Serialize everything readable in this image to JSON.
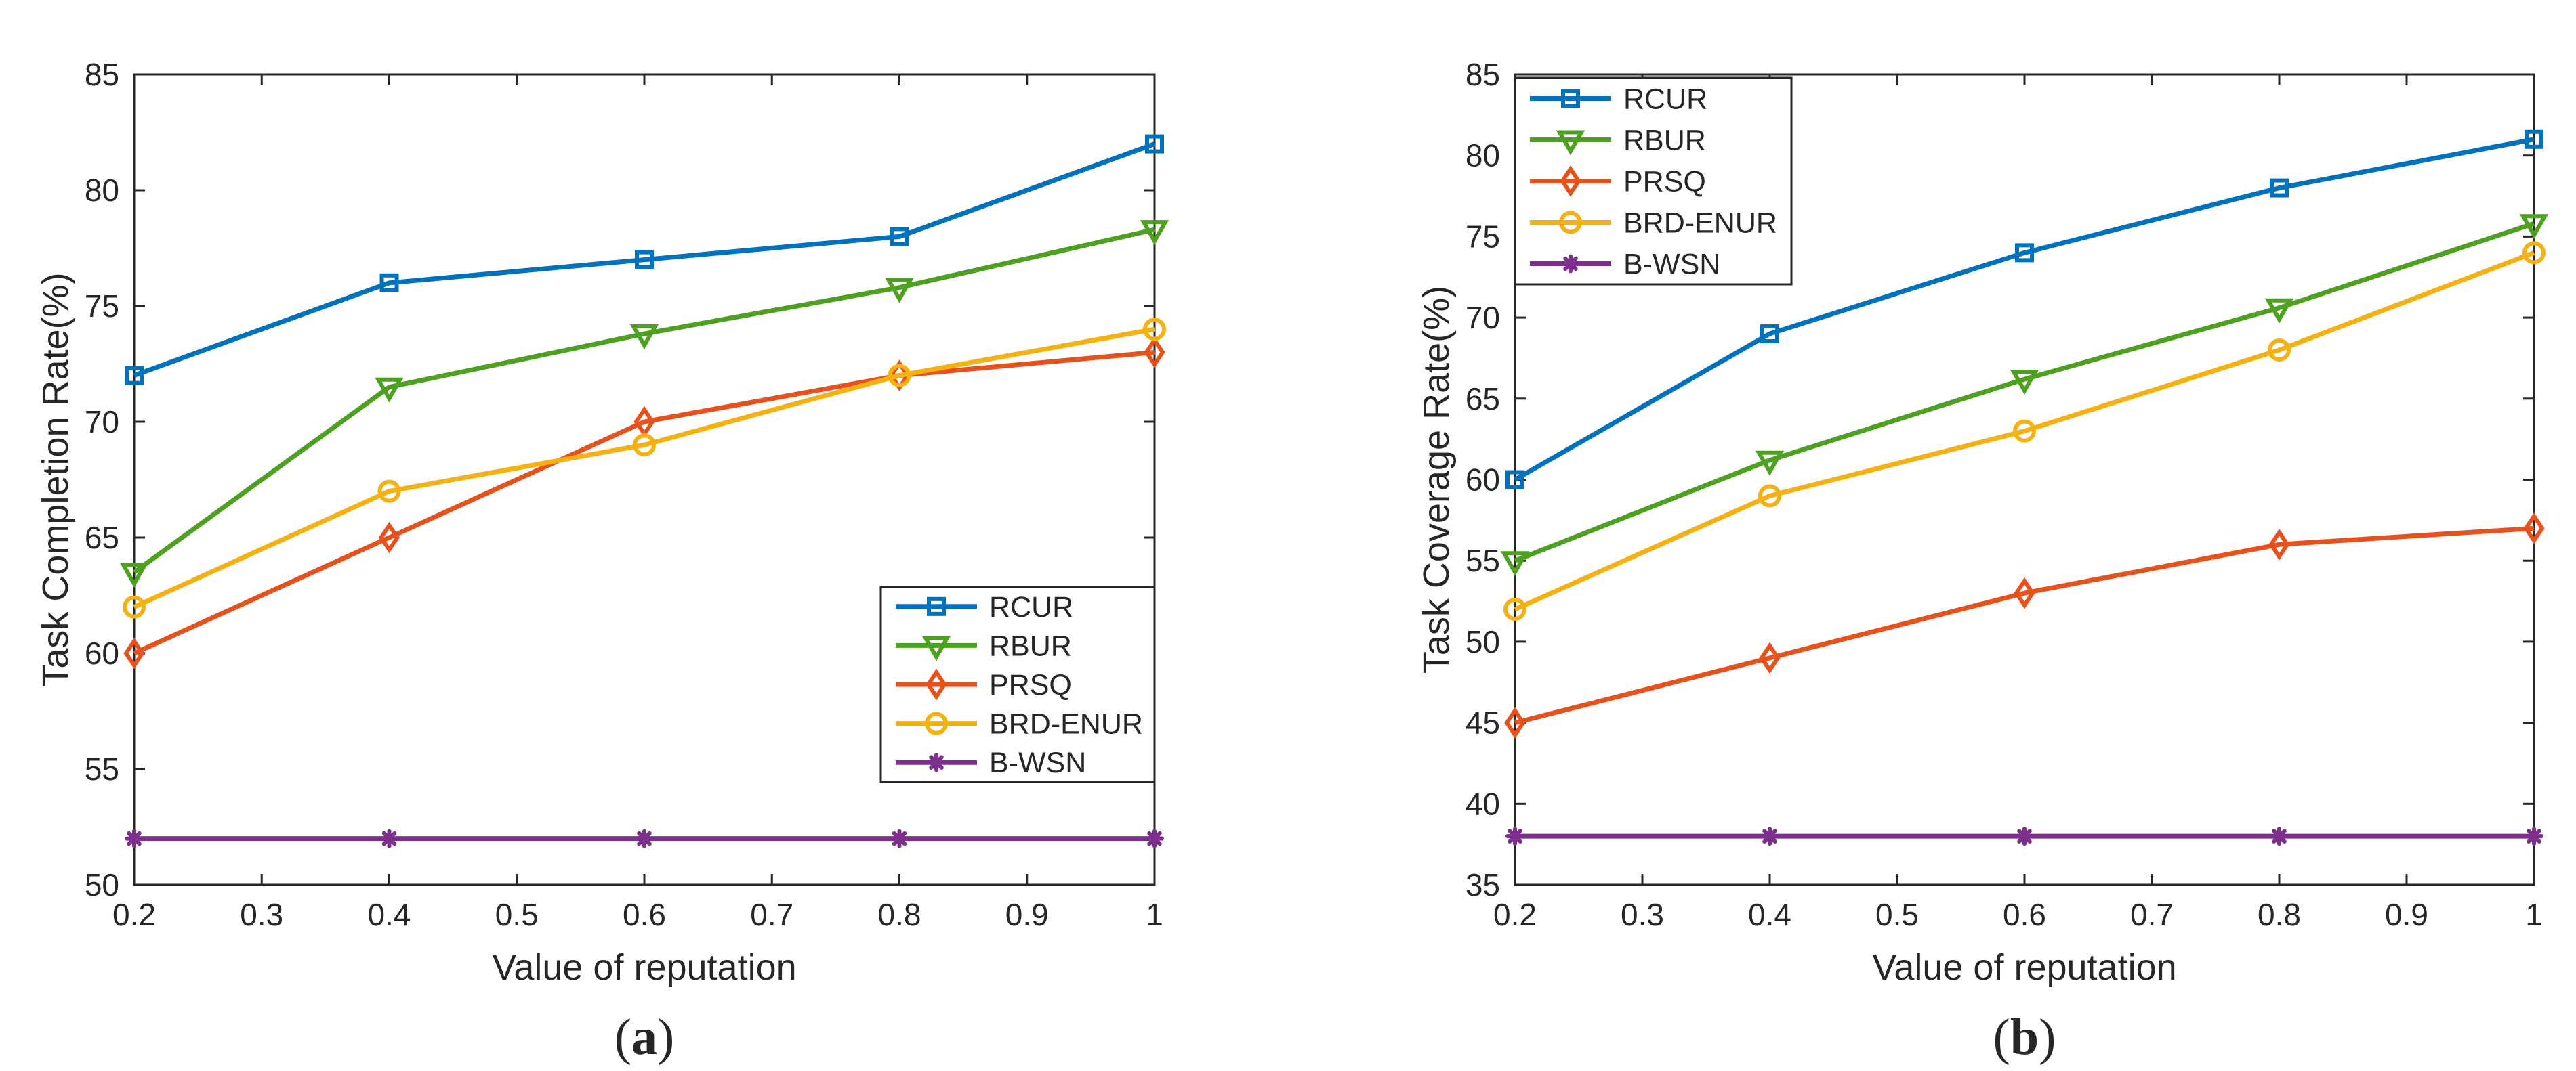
{
  "chart_data": [
    {
      "type": "line",
      "panel_label": "a",
      "title": "",
      "xlabel": "Value of reputation",
      "ylabel": "Task Completion Rate(%)",
      "xlim": [
        0.2,
        1
      ],
      "ylim": [
        50,
        85
      ],
      "xticks": [
        0.2,
        0.3,
        0.4,
        0.5,
        0.6,
        0.7,
        0.8,
        0.9,
        1
      ],
      "xtick_labels": [
        "0.2",
        "0.3",
        "0.4",
        "0.5",
        "0.6",
        "0.7",
        "0.8",
        "0.9",
        "1"
      ],
      "yticks": [
        50,
        55,
        60,
        65,
        70,
        75,
        80,
        85
      ],
      "ytick_labels": [
        "50",
        "55",
        "60",
        "65",
        "70",
        "75",
        "80",
        "85"
      ],
      "legend_position": "bottom-right",
      "x": [
        0.2,
        0.4,
        0.6,
        0.8,
        1
      ],
      "series": [
        {
          "name": "RCUR",
          "color": "#0072BD",
          "marker": "square",
          "values": [
            72,
            76,
            77,
            78,
            82
          ]
        },
        {
          "name": "RBUR",
          "color": "#4DA020",
          "marker": "triangle-down",
          "values": [
            63.5,
            71.5,
            73.8,
            75.8,
            78.3
          ]
        },
        {
          "name": "PRSQ",
          "color": "#E8501C",
          "marker": "diamond",
          "values": [
            60,
            65,
            70,
            72,
            73
          ]
        },
        {
          "name": "BRD-ENUR",
          "color": "#F5B012",
          "marker": "circle",
          "values": [
            62,
            67,
            69,
            72,
            74
          ]
        },
        {
          "name": "B-WSN",
          "color": "#7E2F8E",
          "marker": "asterisk",
          "values": [
            52,
            52,
            52,
            52,
            52
          ]
        }
      ]
    },
    {
      "type": "line",
      "panel_label": "b",
      "title": "",
      "xlabel": "Value of reputation",
      "ylabel": "Task Coverage Rate(%)",
      "xlim": [
        0.2,
        1
      ],
      "ylim": [
        35,
        85
      ],
      "xticks": [
        0.2,
        0.3,
        0.4,
        0.5,
        0.6,
        0.7,
        0.8,
        0.9,
        1
      ],
      "xtick_labels": [
        "0.2",
        "0.3",
        "0.4",
        "0.5",
        "0.6",
        "0.7",
        "0.8",
        "0.9",
        "1"
      ],
      "yticks": [
        35,
        40,
        45,
        50,
        55,
        60,
        65,
        70,
        75,
        80,
        85
      ],
      "ytick_labels": [
        "35",
        "40",
        "45",
        "50",
        "55",
        "60",
        "65",
        "70",
        "75",
        "80",
        "85"
      ],
      "legend_position": "top-left",
      "x": [
        0.2,
        0.4,
        0.6,
        0.8,
        1
      ],
      "series": [
        {
          "name": "RCUR",
          "color": "#0072BD",
          "marker": "square",
          "values": [
            60,
            69,
            74,
            78,
            81
          ]
        },
        {
          "name": "RBUR",
          "color": "#4DA020",
          "marker": "triangle-down",
          "values": [
            55,
            61.2,
            66.2,
            70.6,
            75.8
          ]
        },
        {
          "name": "PRSQ",
          "color": "#E8501C",
          "marker": "diamond",
          "values": [
            45,
            49,
            53,
            56,
            57
          ]
        },
        {
          "name": "BRD-ENUR",
          "color": "#F5B012",
          "marker": "circle",
          "values": [
            52,
            59,
            63,
            68,
            74
          ]
        },
        {
          "name": "B-WSN",
          "color": "#7E2F8E",
          "marker": "asterisk",
          "values": [
            38,
            38,
            38,
            38,
            38
          ]
        }
      ]
    }
  ]
}
